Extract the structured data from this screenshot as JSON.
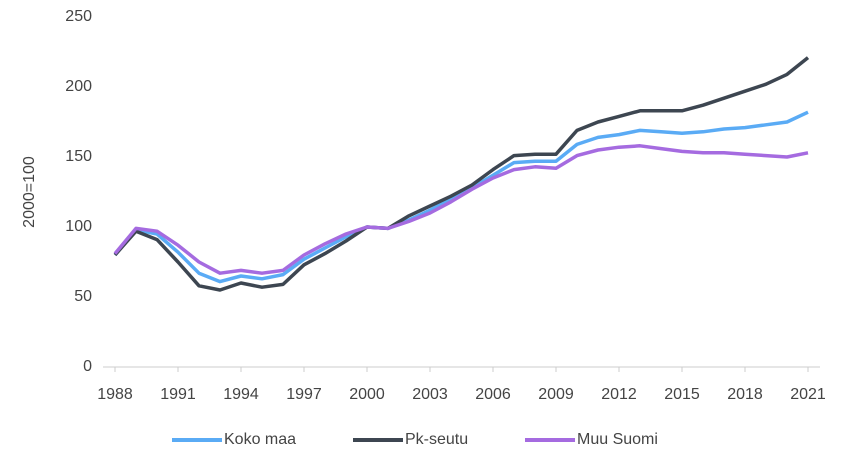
{
  "chart_data": {
    "type": "line",
    "y_label": "2000=100",
    "x": [
      1988,
      1989,
      1990,
      1991,
      1992,
      1993,
      1994,
      1995,
      1996,
      1997,
      1998,
      1999,
      2000,
      2001,
      2002,
      2003,
      2004,
      2005,
      2006,
      2007,
      2008,
      2009,
      2010,
      2011,
      2012,
      2013,
      2014,
      2015,
      2016,
      2017,
      2018,
      2019,
      2020,
      2021
    ],
    "series": [
      {
        "name": "Koko maa",
        "color": "#5aabf5",
        "values": [
          80,
          98,
          95,
          82,
          67,
          61,
          65,
          63,
          66,
          77,
          85,
          93,
          100,
          99,
          105,
          112,
          120,
          128,
          137,
          146,
          147,
          147,
          159,
          164,
          166,
          169,
          168,
          167,
          168,
          170,
          171,
          173,
          175,
          182
        ]
      },
      {
        "name": "Pk-seutu",
        "color": "#3d4651",
        "values": [
          80,
          97,
          91,
          75,
          58,
          55,
          60,
          57,
          59,
          73,
          81,
          90,
          100,
          99,
          108,
          115,
          122,
          130,
          141,
          151,
          152,
          152,
          169,
          175,
          179,
          183,
          183,
          183,
          187,
          192,
          197,
          202,
          209,
          221
        ]
      },
      {
        "name": "Muu Suomi",
        "color": "#a56be0",
        "values": [
          81,
          99,
          97,
          87,
          75,
          67,
          69,
          67,
          69,
          80,
          88,
          95,
          100,
          99,
          104,
          110,
          118,
          127,
          135,
          141,
          143,
          142,
          151,
          155,
          157,
          158,
          156,
          154,
          153,
          153,
          152,
          151,
          150,
          153
        ]
      }
    ],
    "xlim": [
      1988,
      2021
    ],
    "xticks": [
      1988,
      1991,
      1994,
      1997,
      2000,
      2003,
      2006,
      2009,
      2012,
      2015,
      2018,
      2021
    ],
    "ylim": [
      0,
      250
    ],
    "yticks": [
      0,
      50,
      100,
      150,
      200,
      250
    ],
    "grid": false,
    "legend": "bottom"
  }
}
